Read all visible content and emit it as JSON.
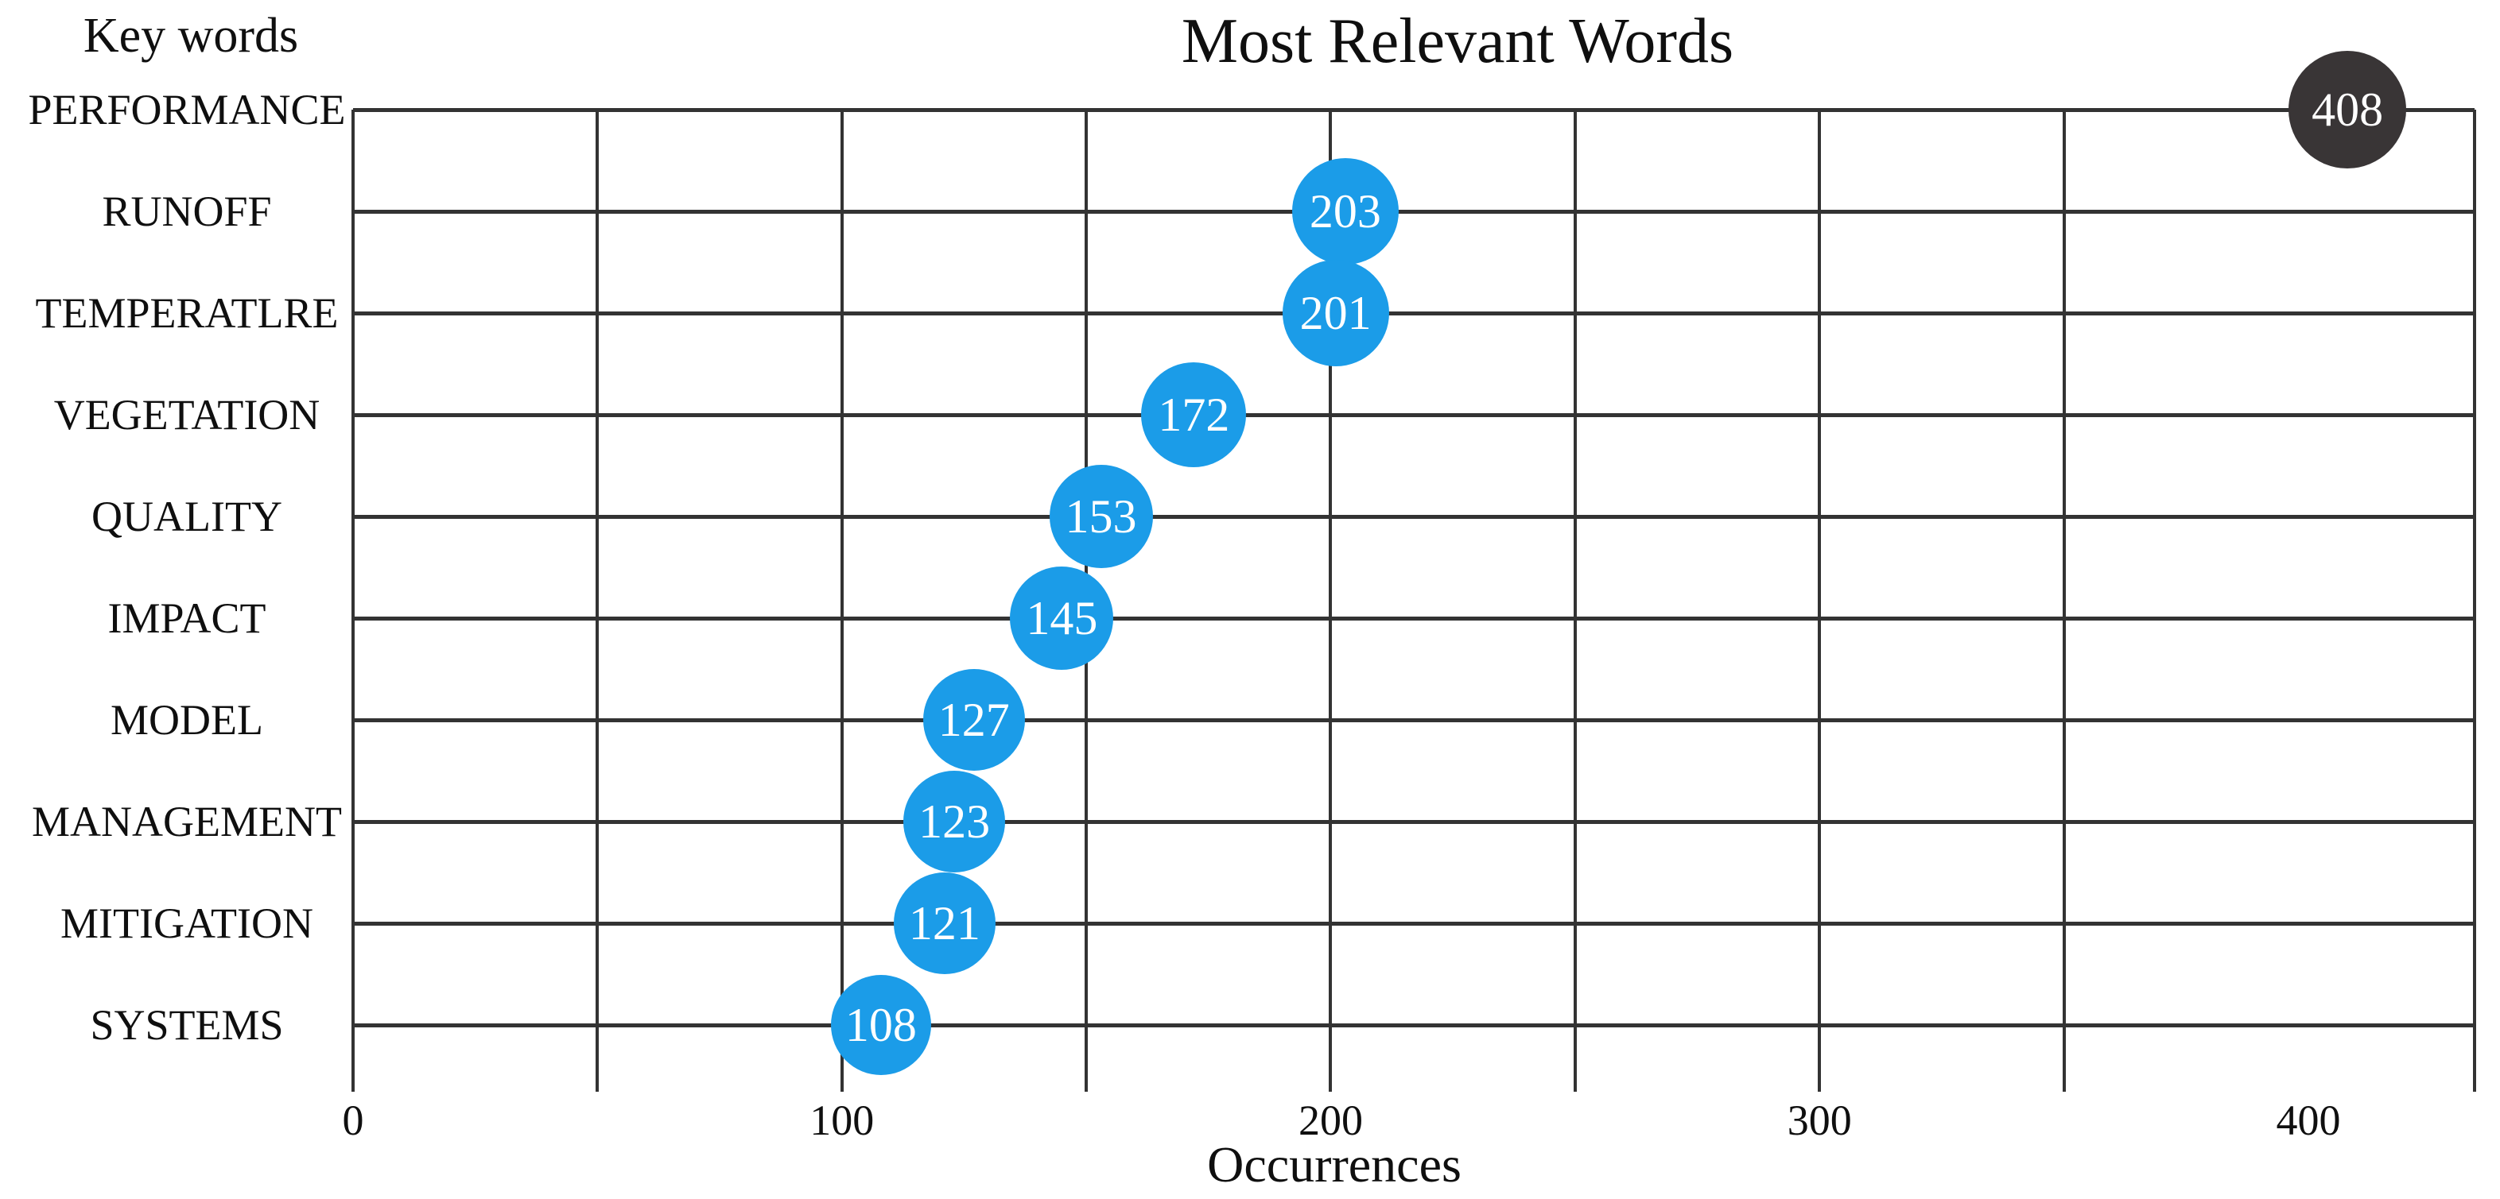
{
  "chart_data": {
    "type": "scatter",
    "subtype": "bubble",
    "title": "Most Relevant Words",
    "xlabel": "Occurrences",
    "ylabel": "Key words",
    "xlim": [
      0,
      434
    ],
    "x_major_ticks": [
      0,
      100,
      200,
      300,
      400
    ],
    "x_grid_interval": 50,
    "grid": "on",
    "legend": "none",
    "categories": [
      "PERFORMANCE",
      "RUNOFF",
      "TEMPERATLRE",
      "VEGETATION",
      "QUALITY",
      "IMPACT",
      "MODEL",
      "MANAGEMENT",
      "MITIGATION",
      "SYSTEMS"
    ],
    "values": [
      408,
      203,
      201,
      172,
      153,
      145,
      127,
      123,
      121,
      108
    ],
    "points": [
      {
        "label": "PERFORMANCE",
        "value": 408,
        "color": "#393536",
        "text_color": "#ffffff"
      },
      {
        "label": "RUNOFF",
        "value": 203,
        "color": "#1b9ce8",
        "text_color": "#ffffff"
      },
      {
        "label": "TEMPERATLRE",
        "value": 201,
        "color": "#1b9ce8",
        "text_color": "#ffffff"
      },
      {
        "label": "VEGETATION",
        "value": 172,
        "color": "#1b9ce8",
        "text_color": "#ffffff"
      },
      {
        "label": "QUALITY",
        "value": 153,
        "color": "#1b9ce8",
        "text_color": "#ffffff"
      },
      {
        "label": "IMPACT",
        "value": 145,
        "color": "#1b9ce8",
        "text_color": "#ffffff"
      },
      {
        "label": "MODEL",
        "value": 127,
        "color": "#1b9ce8",
        "text_color": "#ffffff"
      },
      {
        "label": "MANAGEMENT",
        "value": 123,
        "color": "#1b9ce8",
        "text_color": "#ffffff"
      },
      {
        "label": "MITIGATION",
        "value": 121,
        "color": "#1b9ce8",
        "text_color": "#ffffff"
      },
      {
        "label": "SYSTEMS",
        "value": 108,
        "color": "#1b9ce8",
        "text_color": "#ffffff"
      }
    ],
    "colors": {
      "bubble_blue": "#1b9ce8",
      "bubble_dark": "#393536",
      "gridline": "#333333",
      "text": "#0f0f0f",
      "background": "#ffffff"
    }
  }
}
